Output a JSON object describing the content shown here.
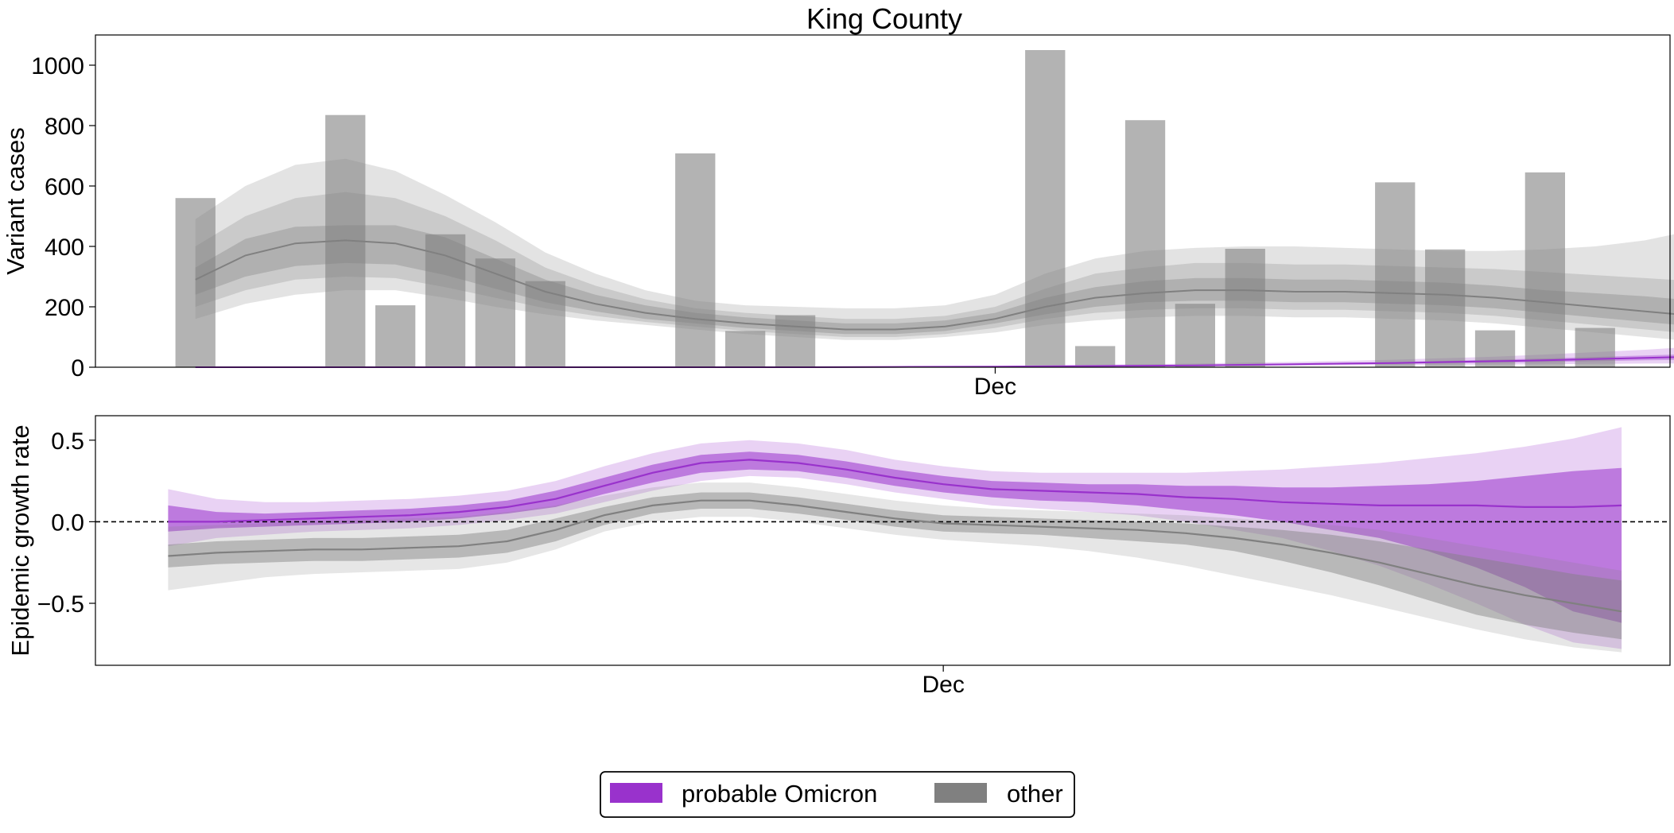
{
  "chart_data": [
    {
      "type": "bar",
      "title": "King County",
      "ylabel": "Variant cases",
      "xlabel": "",
      "x_tick_labels": [
        {
          "day": 32,
          "label": "Dec"
        }
      ],
      "xlim": [
        -4,
        59
      ],
      "ylim": [
        0,
        1100
      ],
      "yticks": [
        0,
        200,
        400,
        600,
        800,
        1000
      ],
      "grid": false,
      "bars": [
        {
          "day": 0,
          "value": 560
        },
        {
          "day": 6,
          "value": 835
        },
        {
          "day": 8,
          "value": 205
        },
        {
          "day": 10,
          "value": 440
        },
        {
          "day": 12,
          "value": 360
        },
        {
          "day": 14,
          "value": 285
        },
        {
          "day": 20,
          "value": 708
        },
        {
          "day": 22,
          "value": 120
        },
        {
          "day": 24,
          "value": 172
        },
        {
          "day": 34,
          "value": 1050
        },
        {
          "day": 36,
          "value": 70
        },
        {
          "day": 38,
          "value": 818
        },
        {
          "day": 40,
          "value": 210
        },
        {
          "day": 42,
          "value": 392
        },
        {
          "day": 48,
          "value": 612
        },
        {
          "day": 50,
          "value": 390
        },
        {
          "day": 52,
          "value": 122
        },
        {
          "day": 54,
          "value": 645
        },
        {
          "day": 56,
          "value": 130
        }
      ],
      "series": [
        {
          "name": "other",
          "color": "#808080",
          "x": [
            0,
            2,
            4,
            6,
            8,
            10,
            12,
            14,
            16,
            18,
            20,
            22,
            24,
            26,
            28,
            30,
            32,
            34,
            36,
            38,
            40,
            42,
            44,
            46,
            48,
            50,
            52,
            54,
            56,
            58,
            60,
            61
          ],
          "median": [
            290,
            370,
            410,
            420,
            410,
            370,
            310,
            250,
            210,
            180,
            160,
            145,
            135,
            125,
            125,
            135,
            160,
            200,
            230,
            245,
            255,
            255,
            250,
            250,
            245,
            240,
            230,
            215,
            200,
            185,
            170,
            165
          ],
          "inner_lo": [
            240,
            300,
            335,
            345,
            340,
            305,
            260,
            215,
            185,
            160,
            145,
            130,
            120,
            110,
            110,
            120,
            145,
            175,
            200,
            215,
            220,
            220,
            215,
            215,
            210,
            205,
            195,
            180,
            165,
            150,
            135,
            130
          ],
          "inner_hi": [
            330,
            425,
            465,
            470,
            470,
            430,
            360,
            290,
            240,
            205,
            180,
            165,
            155,
            145,
            145,
            155,
            180,
            230,
            265,
            285,
            295,
            295,
            290,
            290,
            285,
            280,
            270,
            255,
            245,
            235,
            220,
            215
          ],
          "mid_lo": [
            200,
            255,
            290,
            300,
            295,
            265,
            230,
            195,
            170,
            150,
            135,
            120,
            110,
            100,
            100,
            110,
            130,
            160,
            180,
            190,
            195,
            195,
            190,
            190,
            185,
            180,
            170,
            155,
            140,
            125,
            110,
            105
          ],
          "mid_hi": [
            400,
            500,
            560,
            580,
            560,
            500,
            420,
            330,
            270,
            225,
            195,
            180,
            170,
            160,
            160,
            170,
            200,
            260,
            310,
            330,
            345,
            345,
            340,
            340,
            335,
            330,
            325,
            315,
            305,
            295,
            285,
            280
          ],
          "outer_lo": [
            160,
            210,
            240,
            255,
            255,
            230,
            200,
            175,
            155,
            140,
            125,
            110,
            100,
            90,
            90,
            100,
            115,
            140,
            155,
            165,
            170,
            170,
            165,
            165,
            160,
            155,
            145,
            130,
            115,
            100,
            85,
            80
          ],
          "outer_hi": [
            490,
            600,
            670,
            690,
            650,
            570,
            480,
            380,
            310,
            255,
            220,
            205,
            200,
            195,
            195,
            205,
            240,
            310,
            360,
            385,
            395,
            400,
            400,
            395,
            390,
            385,
            385,
            390,
            400,
            420,
            455,
            470
          ]
        },
        {
          "name": "probable Omicron",
          "color": "#9932CC",
          "x": [
            0,
            4,
            8,
            12,
            16,
            20,
            24,
            28,
            32,
            34,
            36,
            38,
            40,
            42,
            44,
            46,
            48,
            50,
            52,
            54,
            56,
            58,
            60,
            61
          ],
          "median": [
            0,
            0,
            0,
            0,
            0,
            0,
            0,
            1,
            2,
            3,
            4,
            5,
            6,
            8,
            10,
            12,
            14,
            17,
            20,
            23,
            27,
            31,
            35,
            37
          ],
          "inner_lo": [
            0,
            0,
            0,
            0,
            0,
            0,
            0,
            0,
            1,
            2,
            3,
            4,
            5,
            6,
            8,
            9,
            11,
            13,
            15,
            17,
            20,
            23,
            25,
            26
          ],
          "inner_hi": [
            0,
            0,
            0,
            0,
            0,
            0,
            0,
            1,
            3,
            4,
            5,
            6,
            8,
            10,
            12,
            15,
            17,
            21,
            25,
            29,
            34,
            39,
            44,
            46
          ],
          "outer_lo": [
            0,
            0,
            0,
            0,
            0,
            0,
            0,
            0,
            0,
            1,
            1,
            2,
            3,
            4,
            5,
            6,
            7,
            8,
            9,
            10,
            11,
            12,
            13,
            14
          ],
          "outer_hi": [
            0,
            0,
            0,
            0,
            0,
            0,
            0,
            2,
            4,
            6,
            8,
            10,
            12,
            15,
            18,
            21,
            25,
            30,
            35,
            42,
            50,
            58,
            68,
            72
          ]
        }
      ]
    },
    {
      "type": "line",
      "title": "",
      "ylabel": "Epidemic growth rate",
      "xlabel": "",
      "x_tick_labels": [
        {
          "day": 32,
          "label": "Dec"
        }
      ],
      "xlim": [
        -3,
        62
      ],
      "ylim": [
        -0.88,
        0.65
      ],
      "yticks": [
        0.5,
        0.0,
        -0.5
      ],
      "ytick_labels": [
        "0.5",
        "0.0",
        "−0.5"
      ],
      "reference_line": 0.0,
      "grid": false,
      "series": [
        {
          "name": "probable Omicron",
          "color": "#9932CC",
          "x": [
            0,
            2,
            4,
            6,
            8,
            10,
            12,
            14,
            16,
            18,
            20,
            22,
            24,
            26,
            28,
            30,
            32,
            34,
            36,
            38,
            40,
            42,
            44,
            46,
            48,
            50,
            52,
            54,
            56,
            58,
            60
          ],
          "median": [
            0.0,
            0.0,
            0.01,
            0.02,
            0.03,
            0.04,
            0.06,
            0.09,
            0.14,
            0.22,
            0.3,
            0.36,
            0.38,
            0.36,
            0.32,
            0.27,
            0.23,
            0.2,
            0.19,
            0.18,
            0.17,
            0.15,
            0.14,
            0.12,
            0.11,
            0.1,
            0.1,
            0.1,
            0.09,
            0.09,
            0.1
          ],
          "inner_lo": [
            -0.06,
            -0.04,
            -0.03,
            -0.02,
            -0.01,
            0.0,
            0.02,
            0.05,
            0.09,
            0.17,
            0.24,
            0.3,
            0.32,
            0.31,
            0.27,
            0.22,
            0.18,
            0.15,
            0.13,
            0.12,
            0.1,
            0.07,
            0.04,
            0.0,
            -0.05,
            -0.1,
            -0.18,
            -0.28,
            -0.4,
            -0.55,
            -0.62
          ],
          "inner_hi": [
            0.1,
            0.06,
            0.05,
            0.06,
            0.07,
            0.08,
            0.1,
            0.13,
            0.19,
            0.27,
            0.35,
            0.41,
            0.43,
            0.41,
            0.37,
            0.32,
            0.28,
            0.25,
            0.24,
            0.23,
            0.23,
            0.22,
            0.22,
            0.21,
            0.21,
            0.22,
            0.23,
            0.25,
            0.28,
            0.31,
            0.33
          ],
          "outer_lo": [
            -0.15,
            -0.1,
            -0.08,
            -0.06,
            -0.05,
            -0.04,
            -0.02,
            0.01,
            0.05,
            0.12,
            0.19,
            0.25,
            0.28,
            0.27,
            0.23,
            0.18,
            0.14,
            0.1,
            0.08,
            0.06,
            0.04,
            0.0,
            -0.05,
            -0.1,
            -0.18,
            -0.27,
            -0.38,
            -0.5,
            -0.63,
            -0.74,
            -0.78
          ],
          "outer_hi": [
            0.2,
            0.14,
            0.12,
            0.12,
            0.13,
            0.14,
            0.16,
            0.19,
            0.25,
            0.34,
            0.42,
            0.48,
            0.5,
            0.48,
            0.44,
            0.38,
            0.34,
            0.31,
            0.3,
            0.3,
            0.3,
            0.3,
            0.31,
            0.32,
            0.34,
            0.36,
            0.39,
            0.42,
            0.46,
            0.51,
            0.58
          ]
        },
        {
          "name": "other",
          "color": "#808080",
          "x": [
            0,
            2,
            4,
            6,
            8,
            10,
            12,
            14,
            16,
            18,
            20,
            22,
            24,
            26,
            28,
            30,
            32,
            34,
            36,
            38,
            40,
            42,
            44,
            46,
            48,
            50,
            52,
            54,
            56,
            58,
            60
          ],
          "median": [
            -0.21,
            -0.19,
            -0.18,
            -0.17,
            -0.17,
            -0.16,
            -0.15,
            -0.12,
            -0.05,
            0.04,
            0.1,
            0.13,
            0.13,
            0.1,
            0.06,
            0.02,
            -0.01,
            -0.02,
            -0.03,
            -0.04,
            -0.05,
            -0.07,
            -0.1,
            -0.14,
            -0.19,
            -0.25,
            -0.32,
            -0.39,
            -0.45,
            -0.5,
            -0.55
          ],
          "inner_lo": [
            -0.28,
            -0.26,
            -0.25,
            -0.24,
            -0.24,
            -0.23,
            -0.22,
            -0.19,
            -0.12,
            -0.02,
            0.05,
            0.08,
            0.08,
            0.05,
            0.01,
            -0.03,
            -0.06,
            -0.07,
            -0.08,
            -0.1,
            -0.12,
            -0.14,
            -0.18,
            -0.24,
            -0.31,
            -0.39,
            -0.48,
            -0.57,
            -0.63,
            -0.68,
            -0.72
          ],
          "inner_hi": [
            -0.14,
            -0.12,
            -0.11,
            -0.1,
            -0.1,
            -0.09,
            -0.08,
            -0.05,
            0.02,
            0.09,
            0.15,
            0.18,
            0.18,
            0.15,
            0.11,
            0.07,
            0.04,
            0.03,
            0.02,
            0.01,
            0.0,
            -0.01,
            -0.03,
            -0.05,
            -0.08,
            -0.12,
            -0.17,
            -0.22,
            -0.27,
            -0.32,
            -0.36
          ],
          "outer_lo": [
            -0.42,
            -0.38,
            -0.34,
            -0.32,
            -0.31,
            -0.3,
            -0.29,
            -0.25,
            -0.17,
            -0.06,
            0.0,
            0.03,
            0.03,
            0.0,
            -0.04,
            -0.08,
            -0.11,
            -0.13,
            -0.15,
            -0.18,
            -0.22,
            -0.27,
            -0.33,
            -0.39,
            -0.45,
            -0.52,
            -0.59,
            -0.66,
            -0.72,
            -0.77,
            -0.8
          ],
          "outer_hi": [
            -0.03,
            -0.02,
            -0.01,
            0.0,
            0.01,
            0.02,
            0.03,
            0.06,
            0.1,
            0.16,
            0.21,
            0.24,
            0.24,
            0.21,
            0.17,
            0.13,
            0.1,
            0.08,
            0.07,
            0.06,
            0.05,
            0.04,
            0.02,
            0.0,
            -0.02,
            -0.05,
            -0.1,
            -0.15,
            -0.2,
            -0.25,
            -0.3
          ]
        }
      ]
    }
  ],
  "legend": {
    "placement": "bottom-center",
    "items": [
      {
        "label": "probable Omicron",
        "color": "#9932CC"
      },
      {
        "label": "other",
        "color": "#808080"
      }
    ]
  }
}
